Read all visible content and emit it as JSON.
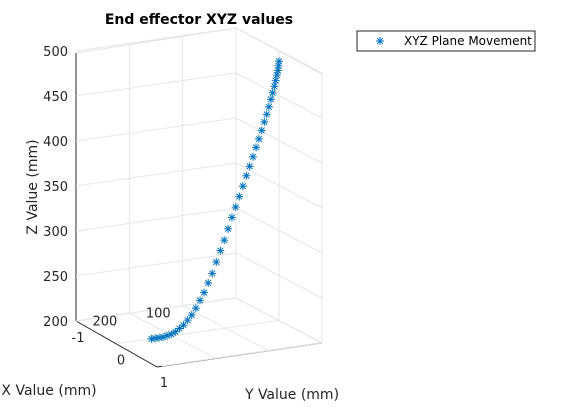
{
  "chart_data": {
    "type": "scatter",
    "projection": "3d",
    "title": "End effector XYZ values",
    "xlabel": "X Value (mm)",
    "ylabel": "Y Value (mm)",
    "zlabel": "Z Value (mm)",
    "xlim": [
      0,
      300
    ],
    "ylim": [
      -1,
      1
    ],
    "zlim": [
      200,
      500
    ],
    "x_ticks": [
      "100",
      "200"
    ],
    "y_ticks": [
      "-1",
      "0",
      "1"
    ],
    "z_ticks": [
      "200",
      "250",
      "300",
      "350",
      "400",
      "450",
      "500"
    ],
    "grid": true,
    "legend_position": "top-right",
    "marker": "asterisk",
    "color": "#0072BD",
    "series": [
      {
        "name": "XYZ Plane Movement",
        "x": [
          0,
          1.0,
          2.0,
          4.0,
          6.2,
          8.7,
          11.8,
          15.1,
          18.9,
          23.0,
          27.5,
          32.4,
          37.6,
          43.0,
          48.8,
          55.0,
          61.2,
          67.7,
          74.4,
          81.2,
          88.3,
          95.4,
          102.6,
          110.0,
          117.6,
          125.2,
          132.8,
          140.4,
          148.0,
          155.8,
          163.6,
          171.4,
          179.0,
          186.6,
          194.4,
          202.2,
          210.0,
          217.4,
          224.8,
          232.2,
          239.2
        ],
        "y": [
          0,
          0,
          0,
          0,
          0,
          0,
          0,
          0,
          0,
          0,
          0,
          0,
          0,
          0,
          0,
          0,
          0,
          0,
          0,
          0,
          0,
          0,
          0,
          0,
          0,
          0,
          0,
          0,
          0,
          0,
          0,
          0,
          0,
          0,
          0,
          0,
          0,
          0,
          0,
          0,
          0
        ],
        "z": [
          488,
          483,
          478,
          473,
          467,
          461,
          454,
          447,
          439,
          431,
          423,
          414,
          405,
          396,
          386,
          376,
          366,
          355,
          344,
          333,
          322,
          310,
          298,
          287,
          275,
          263,
          253,
          243,
          235,
          227,
          220,
          215,
          210,
          207,
          204,
          202,
          201,
          200,
          200,
          200,
          200
        ]
      }
    ]
  }
}
